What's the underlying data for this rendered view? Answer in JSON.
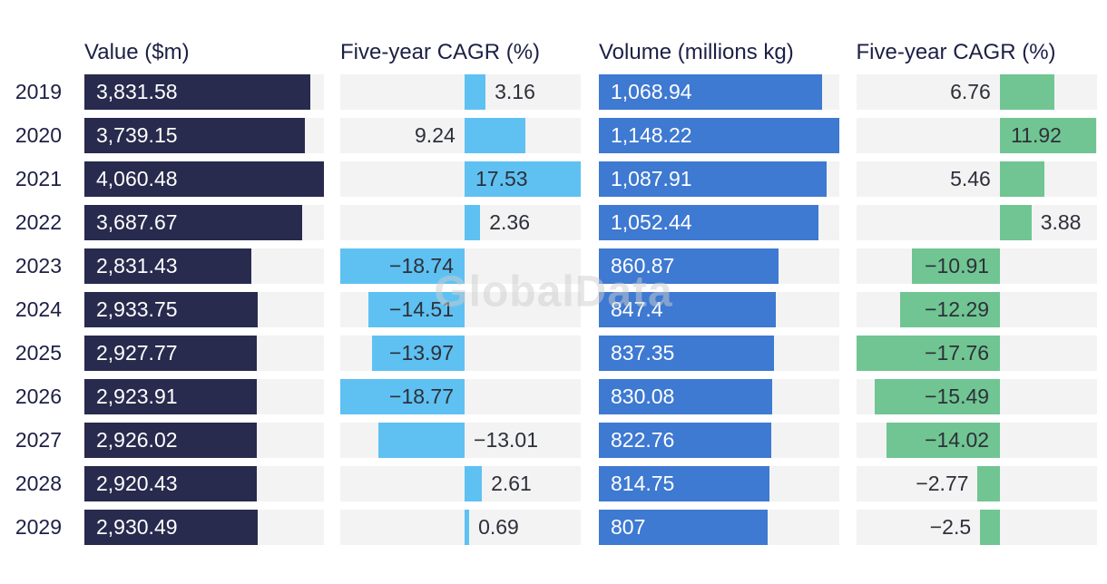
{
  "chart_data": {
    "type": "bar",
    "orientation": "horizontal",
    "watermark": "GlobalData",
    "track_color": "#f3f3f4",
    "text_color": "#1c2045",
    "categories": [
      "2019",
      "2020",
      "2021",
      "2022",
      "2023",
      "2024",
      "2025",
      "2026",
      "2027",
      "2028",
      "2029"
    ],
    "panels": [
      {
        "id": "value",
        "header": "Value ($m)",
        "style": "filled",
        "bar_color": "#282b4e",
        "label_color": "#ffffff",
        "values": [
          3831.58,
          3739.15,
          4060.48,
          3687.67,
          2831.43,
          2933.75,
          2927.77,
          2923.91,
          2926.02,
          2920.43,
          2930.49
        ],
        "labels": [
          "3,831.58",
          "3,739.15",
          "4,060.48",
          "3,687.67",
          "2,831.43",
          "2,933.75",
          "2,927.77",
          "2,923.91",
          "2,926.02",
          "2,920.43",
          "2,930.49"
        ],
        "axis": {
          "min": 0,
          "max": 4060.48
        }
      },
      {
        "id": "value-cagr",
        "header": "Five-year CAGR (%)",
        "style": "diverging",
        "bar_color": "#5ec1f2",
        "label_color": "#2e3039",
        "values": [
          3.16,
          9.24,
          17.53,
          2.36,
          -18.74,
          -14.51,
          -13.97,
          -18.77,
          -13.01,
          2.61,
          0.69
        ],
        "labels": [
          "3.16",
          "9.24",
          "17.53",
          "2.36",
          "−18.74",
          "−14.51",
          "−13.97",
          "−18.77",
          "−13.01",
          "2.61",
          "0.69"
        ],
        "axis": {
          "min": -18.77,
          "max": 17.53
        }
      },
      {
        "id": "volume",
        "header": "Volume (millions kg)",
        "style": "filled",
        "bar_color": "#3e79d2",
        "label_color": "#ffffff",
        "values": [
          1068.94,
          1148.22,
          1087.91,
          1052.44,
          860.87,
          847.4,
          837.35,
          830.08,
          822.76,
          814.75,
          807
        ],
        "labels": [
          "1,068.94",
          "1,148.22",
          "1,087.91",
          "1,052.44",
          "860.87",
          "847.4",
          "837.35",
          "830.08",
          "822.76",
          "814.75",
          "807"
        ],
        "axis": {
          "min": 0,
          "max": 1148.22
        }
      },
      {
        "id": "volume-cagr",
        "header": "Five-year CAGR (%)",
        "style": "diverging",
        "bar_color": "#70c593",
        "label_color": "#2e3039",
        "values": [
          6.76,
          11.92,
          5.46,
          3.88,
          -10.91,
          -12.29,
          -17.76,
          -15.49,
          -14.02,
          -2.77,
          -2.5
        ],
        "labels": [
          "6.76",
          "11.92",
          "5.46",
          "3.88",
          "−10.91",
          "−12.29",
          "−17.76",
          "−15.49",
          "−14.02",
          "−2.77",
          "−2.5"
        ],
        "axis": {
          "min": -17.76,
          "max": 11.92
        }
      }
    ]
  }
}
